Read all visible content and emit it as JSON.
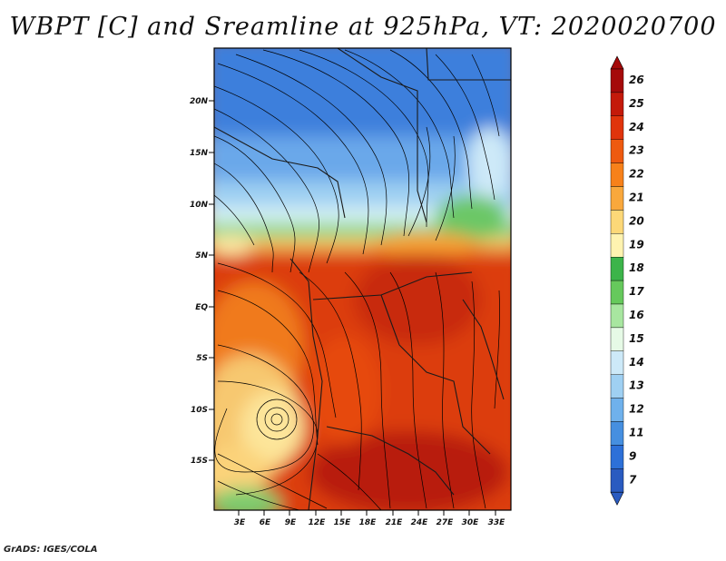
{
  "title": "WBPT [C] and Sreamline at 925hPa, VT: 2020020700",
  "footer": "GrADS: IGES/COLA",
  "lat_labels": [
    "20N",
    "15N",
    "10N",
    "5N",
    "EQ",
    "5S",
    "10S",
    "15S"
  ],
  "lon_labels": [
    "3E",
    "6E",
    "9E",
    "12E",
    "15E",
    "18E",
    "21E",
    "24E",
    "27E",
    "30E",
    "33E"
  ],
  "colorbar": {
    "levels": [
      "26",
      "25",
      "24",
      "23",
      "22",
      "21",
      "20",
      "19",
      "18",
      "17",
      "16",
      "15",
      "14",
      "13",
      "12",
      "11",
      "9",
      "7"
    ],
    "colors": [
      "#a50a0a",
      "#c41a0a",
      "#e0340c",
      "#ee5a10",
      "#f7811a",
      "#f9a83c",
      "#fcd878",
      "#fff3b0",
      "#3cb44a",
      "#66c95c",
      "#a8e6a0",
      "#e6fae6",
      "#cde9f8",
      "#9fd0f2",
      "#6fb1ec",
      "#468fe0",
      "#2d70d8",
      "#2a5bc0"
    ]
  }
}
